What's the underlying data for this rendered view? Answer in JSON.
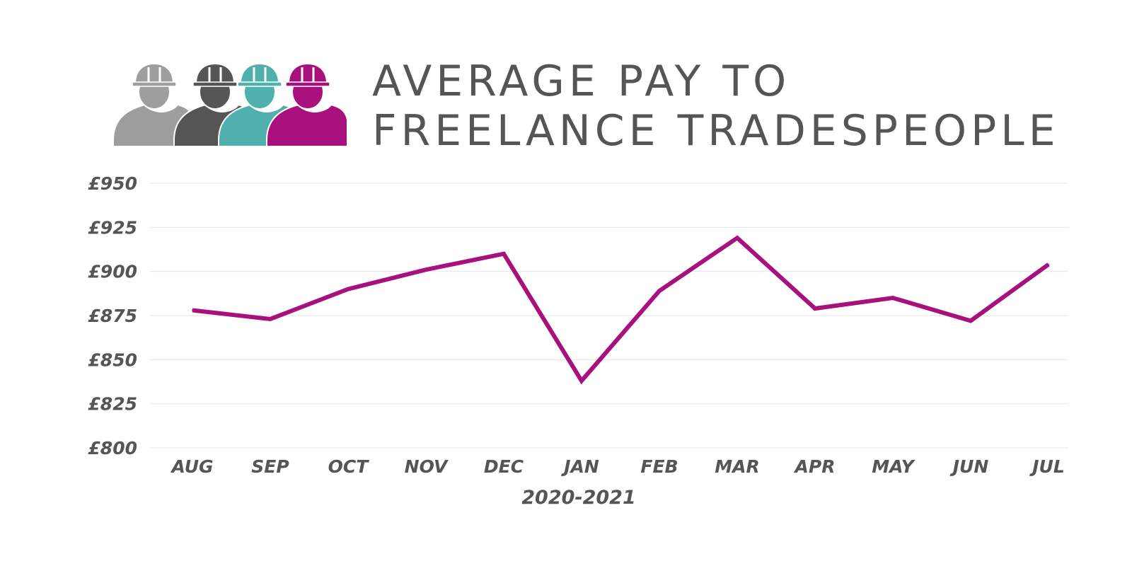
{
  "title_lines": [
    "AVERAGE PAY TO",
    "FREELANCE TRADESPEOPLE"
  ],
  "icon": {
    "name": "construction-workers-icon",
    "colors": [
      "#9e9e9d",
      "#555555",
      "#4fb0ad",
      "#a8117d"
    ]
  },
  "chart_data": {
    "type": "line",
    "title": "AVERAGE PAY TO FREELANCE TRADESPEOPLE",
    "xlabel": "2020-2021",
    "ylabel": "",
    "categories": [
      "AUG",
      "SEP",
      "OCT",
      "NOV",
      "DEC",
      "JAN",
      "FEB",
      "MAR",
      "APR",
      "MAY",
      "JUN",
      "JUL"
    ],
    "series": [
      {
        "values": [
          878,
          873,
          890,
          901,
          910,
          838,
          889,
          919,
          879,
          885,
          872,
          904
        ],
        "color": "#a8117d"
      }
    ],
    "ylim": [
      800,
      950
    ],
    "yticks": [
      800,
      825,
      850,
      875,
      900,
      925,
      950
    ],
    "ytick_labels": [
      "£800",
      "£825",
      "£850",
      "£875",
      "£900",
      "£925",
      "£950"
    ],
    "grid": true,
    "legend": "none"
  }
}
